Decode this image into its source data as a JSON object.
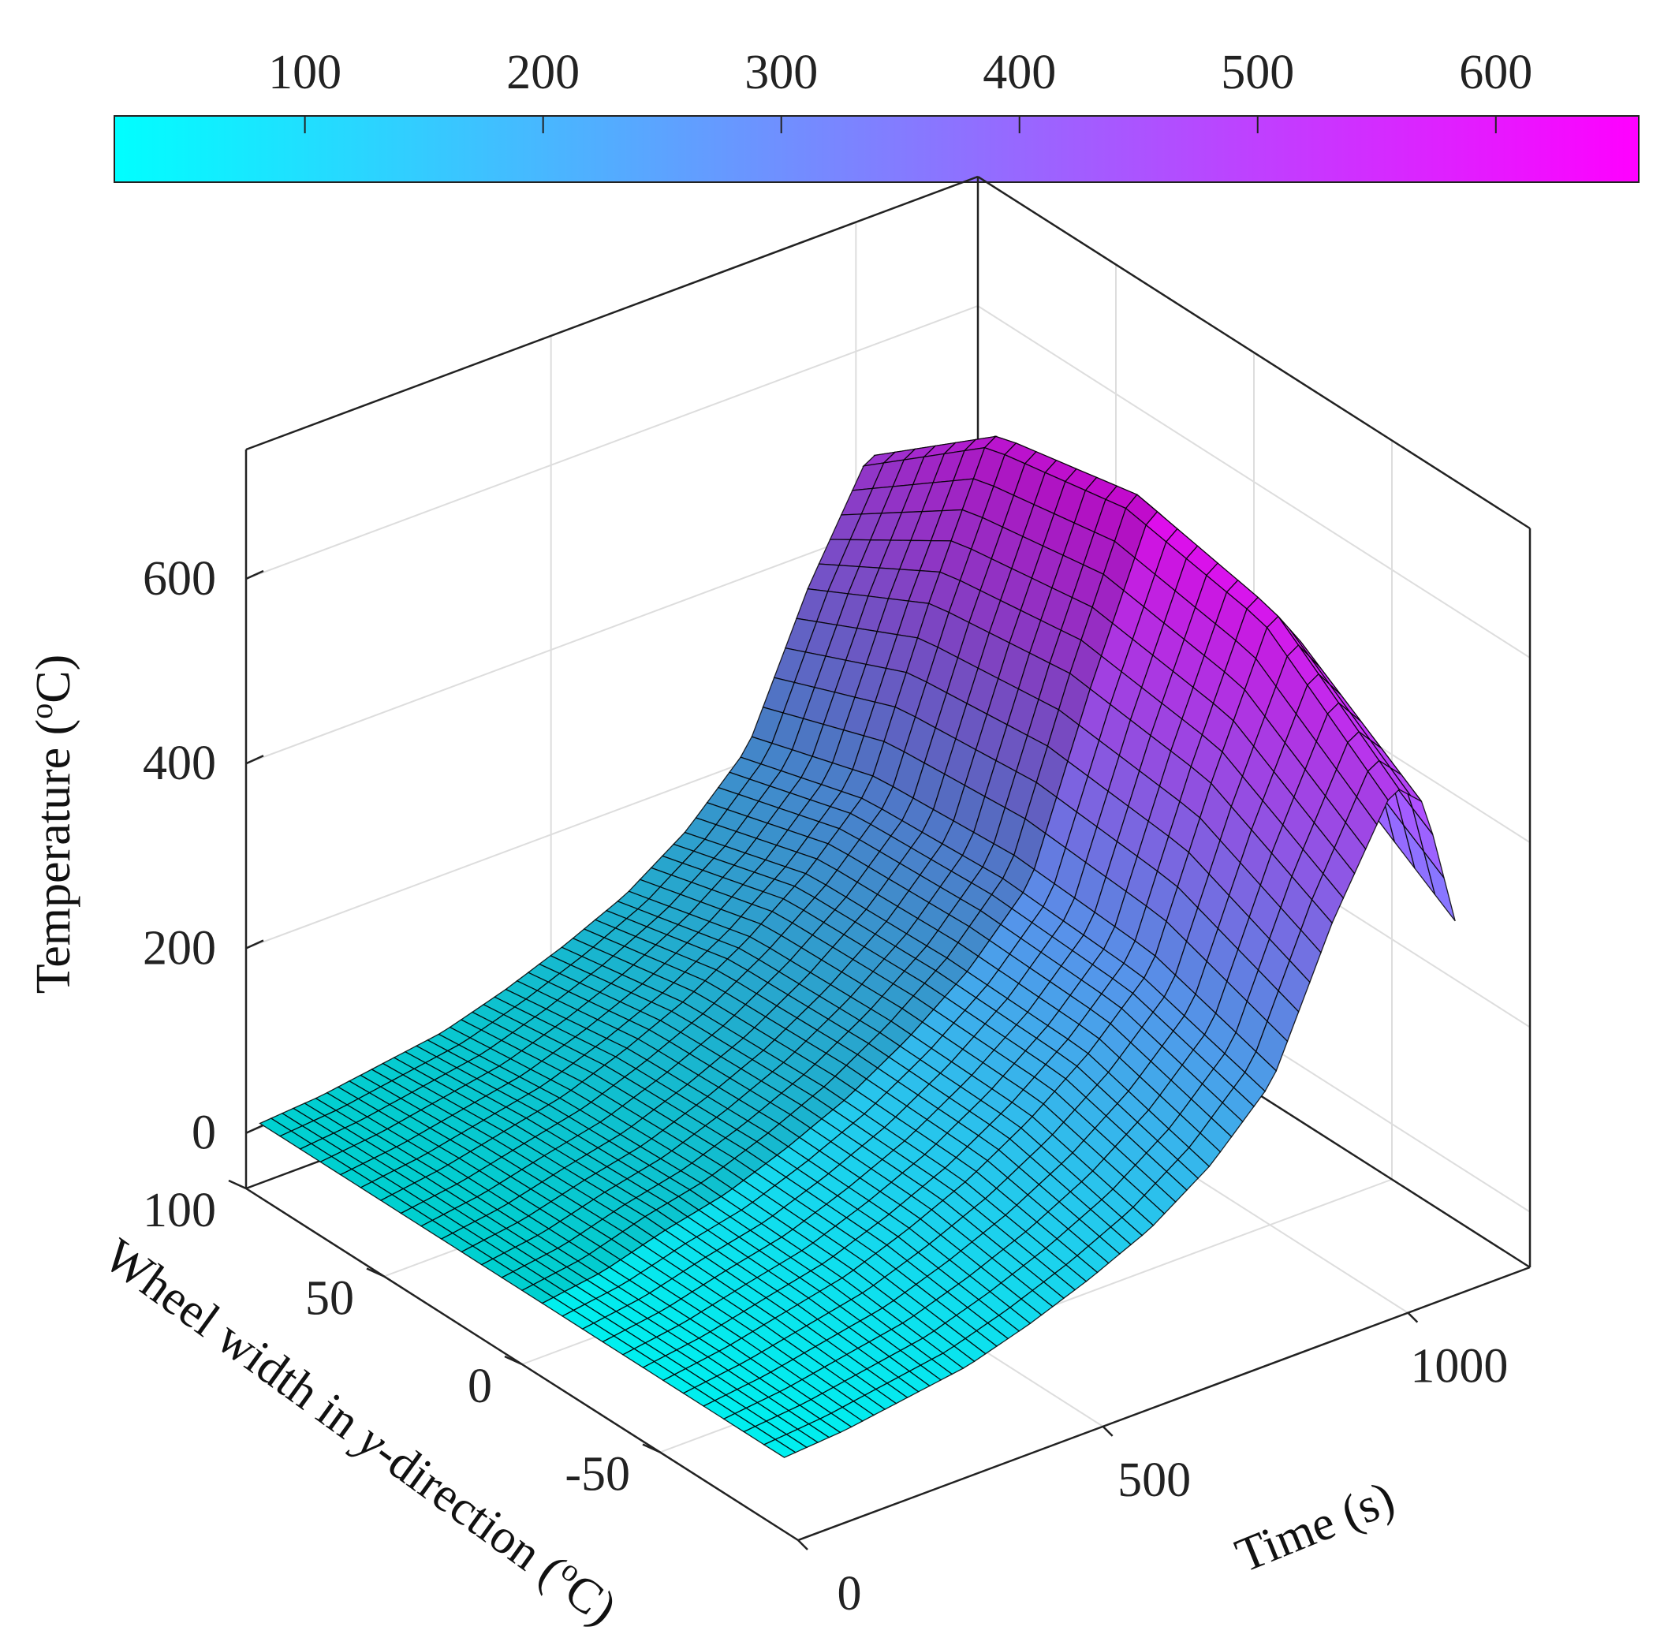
{
  "chart_data": {
    "type": "surface",
    "title": "",
    "xlabel": "Time (s)",
    "ylabel_parts": [
      "Wheel width in ",
      "y",
      "-direction (",
      "o",
      "C)"
    ],
    "zlabel_parts": [
      "Temperature (",
      "o",
      "C)"
    ],
    "xlim": [
      0,
      1200
    ],
    "ylim": [
      -100,
      100
    ],
    "zlim": [
      -60,
      740
    ],
    "xticks": [
      0,
      500,
      1000
    ],
    "yticks": [
      -50,
      0,
      50,
      100
    ],
    "zticks": [
      0,
      200,
      400,
      600
    ],
    "grid": true,
    "colormap": "cool",
    "colorbar": {
      "location": "top",
      "range": [
        20,
        660
      ],
      "ticks": [
        100,
        200,
        300,
        400,
        500,
        600
      ],
      "colors": [
        "#00ffff",
        "#ff00ff"
      ]
    },
    "surface": {
      "time": [
        0,
        100,
        200,
        300,
        400,
        500,
        600,
        700,
        800,
        900,
        1000,
        1050,
        1100
      ],
      "width": [
        -95,
        -50,
        0,
        50,
        95
      ],
      "temperature": [
        [
          20,
          25,
          35,
          45,
          65,
          90,
          120,
          165,
          230,
          380,
          500,
          470,
          330
        ],
        [
          20,
          30,
          45,
          60,
          85,
          115,
          155,
          205,
          270,
          450,
          610,
          560,
          420
        ],
        [
          20,
          30,
          50,
          65,
          90,
          120,
          160,
          210,
          280,
          470,
          640,
          600,
          460
        ],
        [
          20,
          30,
          45,
          60,
          85,
          115,
          155,
          205,
          270,
          450,
          610,
          560,
          420
        ],
        [
          20,
          25,
          35,
          45,
          65,
          90,
          120,
          165,
          230,
          380,
          500,
          470,
          330
        ]
      ]
    }
  }
}
